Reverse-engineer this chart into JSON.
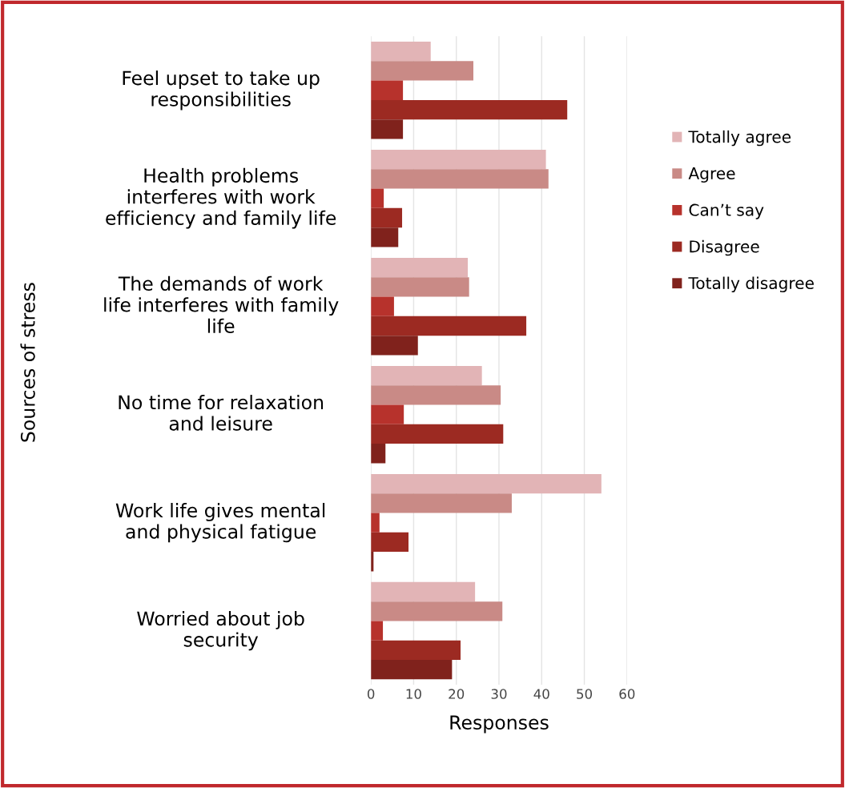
{
  "chart_data": {
    "type": "bar",
    "orientation": "horizontal",
    "xlabel": "Responses",
    "ylabel": "Sources of stress",
    "categories": [
      "Feel upset to take up responsibilities",
      "Health problems interferes with work efficiency and family life",
      "The demands of work life interferes with family life",
      "No time for relaxation and leisure",
      "Work life gives mental and physical fatigue",
      "Worried about job security"
    ],
    "series": [
      {
        "name": "Totally agree",
        "color": "#e2b4b6",
        "values": [
          14,
          41,
          22.7,
          26,
          54,
          24.4
        ]
      },
      {
        "name": "Agree",
        "color": "#c98a86",
        "values": [
          24,
          41.6,
          23,
          30.4,
          33,
          30.8
        ]
      },
      {
        "name": "Can’t say",
        "color": "#b7322c",
        "values": [
          7.5,
          3,
          5.4,
          7.7,
          2,
          2.8
        ]
      },
      {
        "name": "Disagree",
        "color": "#9c2a22",
        "values": [
          46,
          7.3,
          36.4,
          31,
          8.8,
          21
        ]
      },
      {
        "name": "Totally disagree",
        "color": "#80221c",
        "values": [
          7.5,
          6.4,
          11,
          3.4,
          0.6,
          19
        ]
      }
    ],
    "xlim": [
      0,
      60
    ],
    "xticks": [
      0,
      10,
      20,
      30,
      40,
      50,
      60
    ],
    "grid": "x",
    "legend": "right"
  }
}
